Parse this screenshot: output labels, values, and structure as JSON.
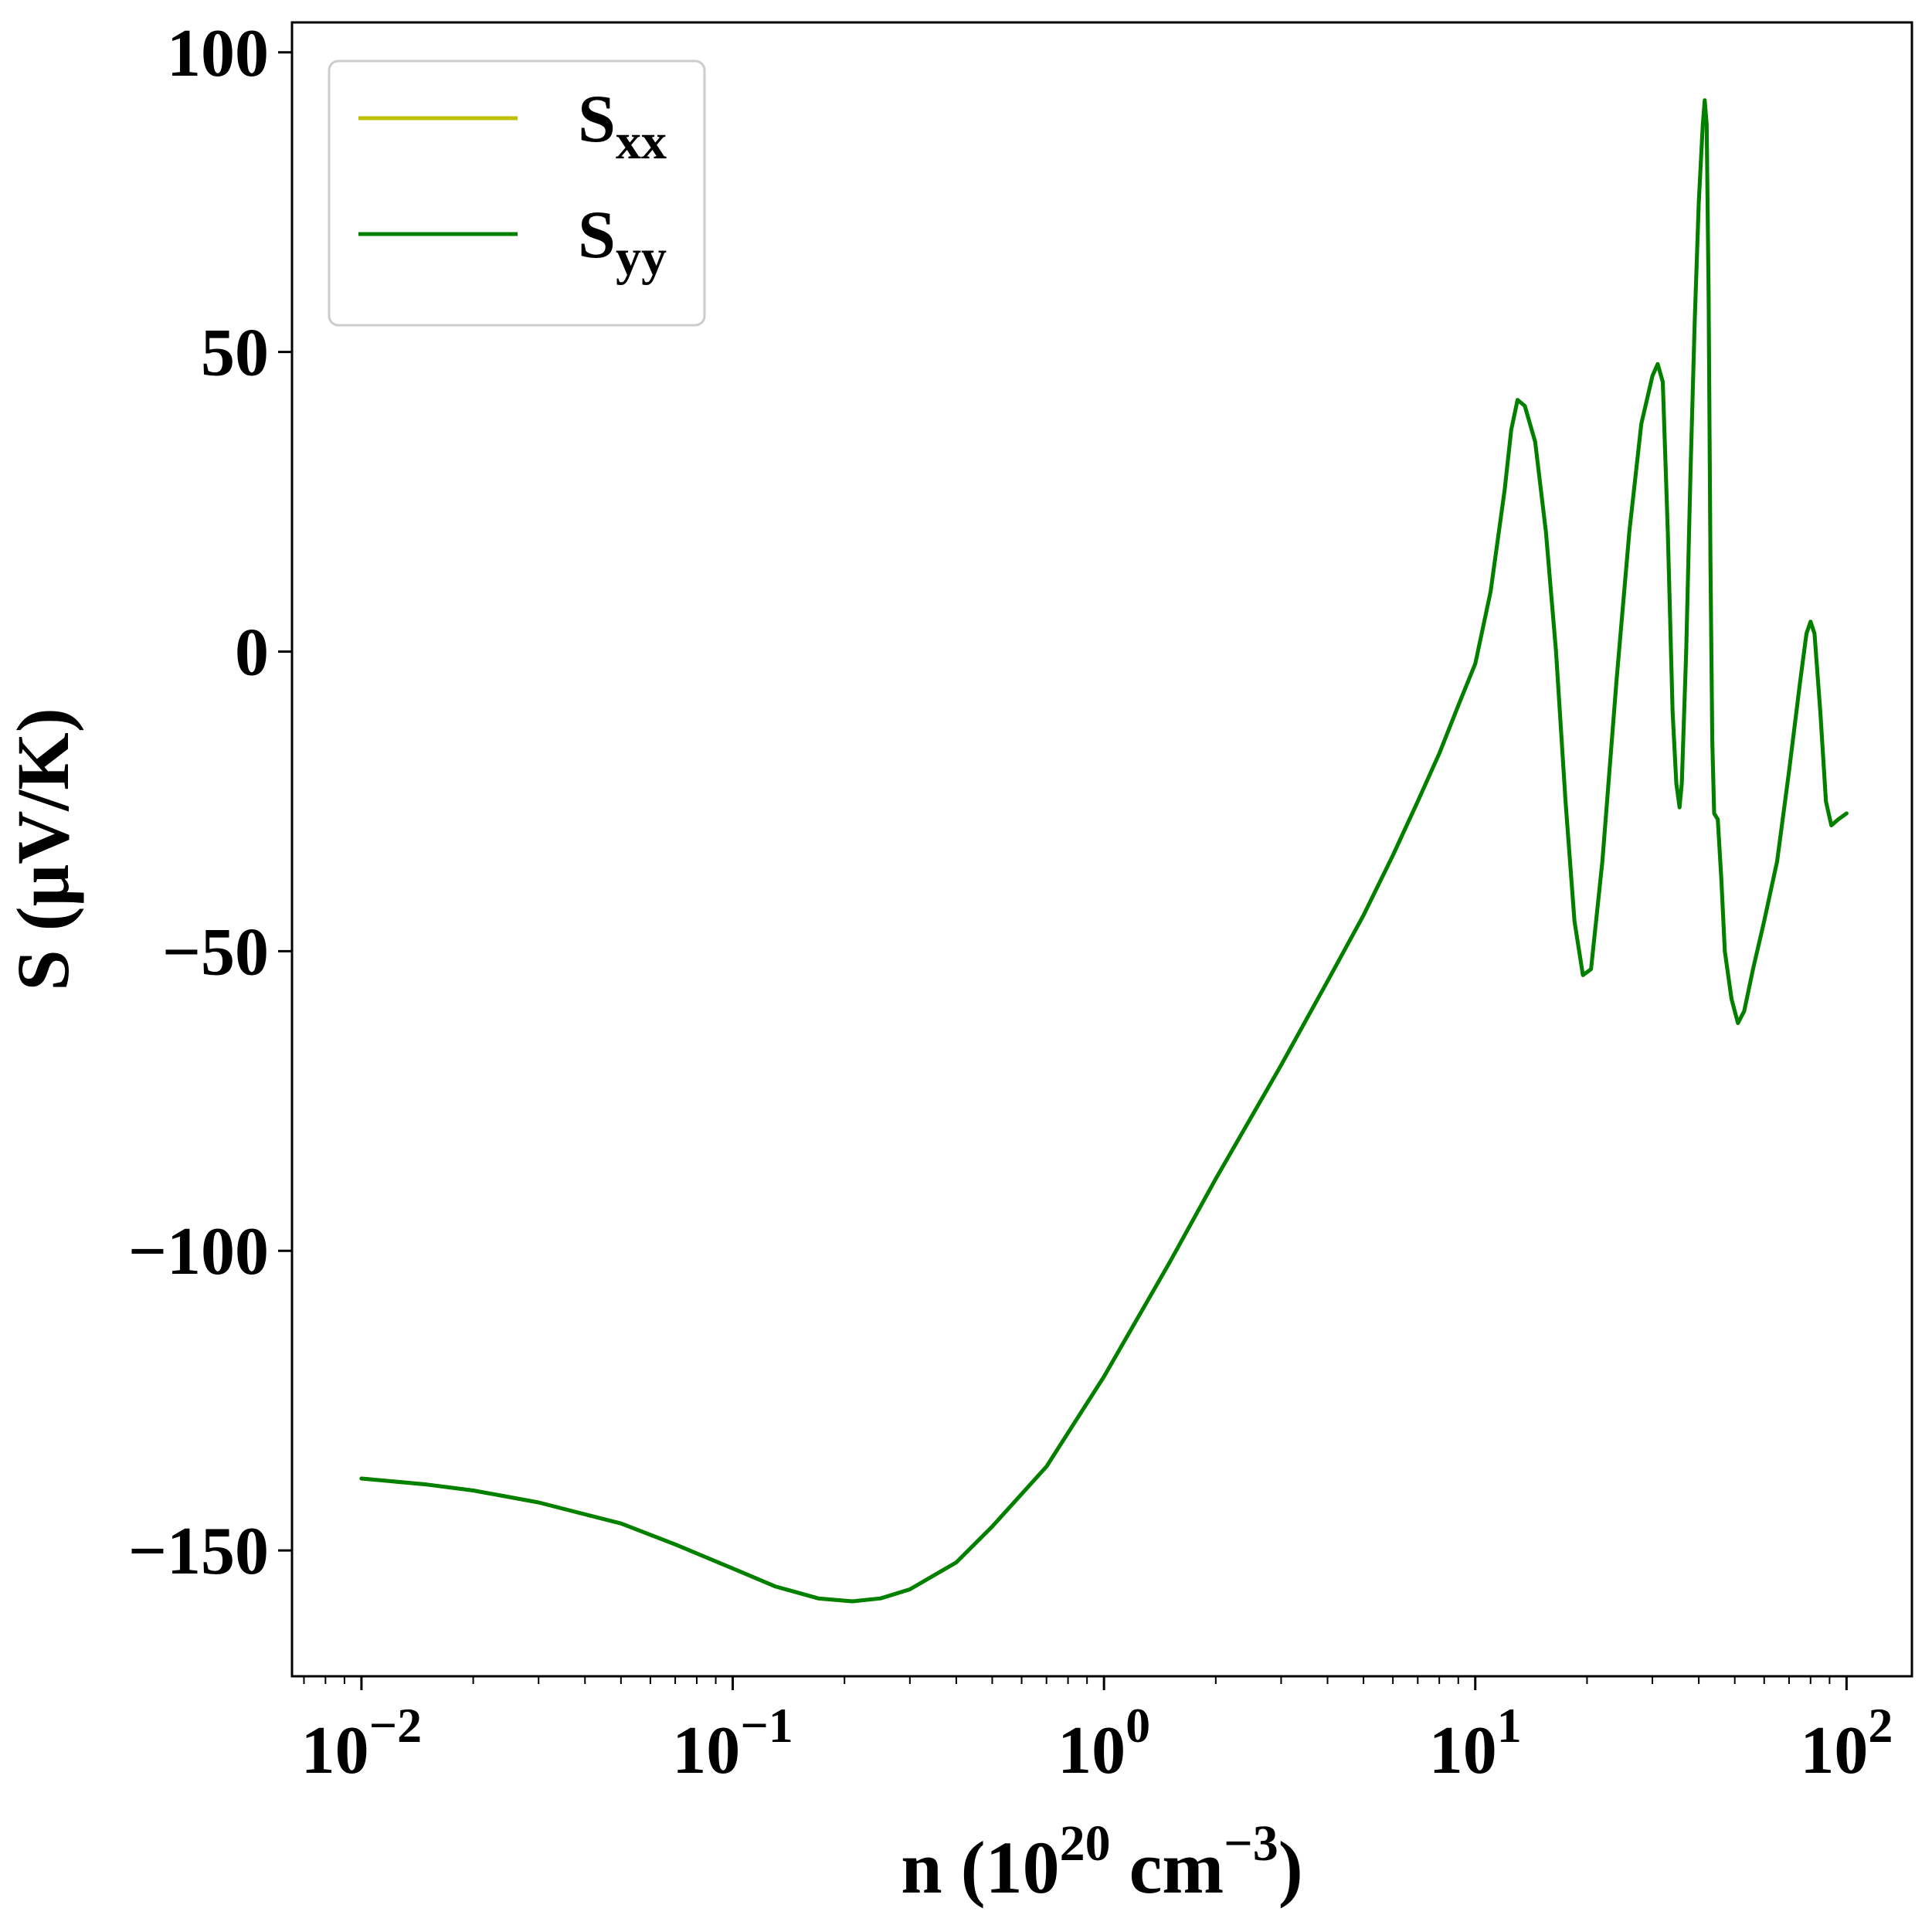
{
  "chart_data": {
    "type": "line",
    "title": "",
    "xscale": "log",
    "xlim": [
      0.0065,
      150
    ],
    "ylim": [
      -171,
      105
    ],
    "grid": false,
    "legend_position": "top-left",
    "xlabel": {
      "main": "n (10",
      "sup1": "20",
      "mid": " cm",
      "sup2": "−3",
      "end": ")"
    },
    "ylabel": "S (μV/K)",
    "x_ticks": [
      {
        "value": 0.01,
        "base": "10",
        "exp": "−2"
      },
      {
        "value": 0.1,
        "base": "10",
        "exp": "−1"
      },
      {
        "value": 1,
        "base": "10",
        "exp": "0"
      },
      {
        "value": 10,
        "base": "10",
        "exp": "1"
      },
      {
        "value": 100,
        "base": "10",
        "exp": "2"
      }
    ],
    "y_ticks": [
      {
        "value": 100,
        "label": "100"
      },
      {
        "value": 50,
        "label": "50"
      },
      {
        "value": 0,
        "label": "0"
      },
      {
        "value": -50,
        "label": "−50"
      },
      {
        "value": -100,
        "label": "−100"
      },
      {
        "value": -150,
        "label": "−150"
      }
    ],
    "series": [
      {
        "name": "S_xx",
        "legend": {
          "base": "S",
          "sub": "xx"
        },
        "color": "#bfbf00",
        "points": [
          [
            0.01,
            -138
          ],
          [
            0.015,
            -139
          ],
          [
            0.02,
            -140
          ],
          [
            0.03,
            -142
          ],
          [
            0.05,
            -145.5
          ],
          [
            0.07,
            -149
          ],
          [
            0.1,
            -153
          ],
          [
            0.13,
            -156
          ],
          [
            0.17,
            -158
          ],
          [
            0.21,
            -158.5
          ],
          [
            0.25,
            -158
          ],
          [
            0.3,
            -156.5
          ],
          [
            0.4,
            -152
          ],
          [
            0.5,
            -146
          ],
          [
            0.7,
            -136
          ],
          [
            1,
            -121
          ],
          [
            1.5,
            -102
          ],
          [
            2,
            -88
          ],
          [
            3,
            -69
          ],
          [
            4,
            -55
          ],
          [
            5,
            -44
          ],
          [
            6,
            -34
          ],
          [
            7,
            -25
          ],
          [
            8,
            -17
          ],
          [
            9,
            -9
          ],
          [
            10,
            -2
          ],
          [
            11,
            10
          ],
          [
            12,
            27
          ],
          [
            12.5,
            37
          ],
          [
            13,
            42
          ],
          [
            13.6,
            41
          ],
          [
            14.5,
            35
          ],
          [
            15.5,
            20
          ],
          [
            16.5,
            0
          ],
          [
            17.5,
            -25
          ],
          [
            18.5,
            -45
          ],
          [
            19.5,
            -54
          ],
          [
            20.5,
            -53
          ],
          [
            22,
            -35
          ],
          [
            24,
            -5
          ],
          [
            26,
            20
          ],
          [
            28,
            38
          ],
          [
            30,
            46
          ],
          [
            31,
            48
          ],
          [
            32,
            45
          ],
          [
            33,
            20
          ],
          [
            34,
            -10
          ],
          [
            34.8,
            -22
          ],
          [
            35.5,
            -26
          ],
          [
            36,
            -22
          ],
          [
            37,
            0
          ],
          [
            38,
            30
          ],
          [
            39,
            55
          ],
          [
            40,
            75
          ],
          [
            41,
            88
          ],
          [
            41.5,
            92
          ],
          [
            42,
            88
          ],
          [
            42.5,
            60
          ],
          [
            43,
            15
          ],
          [
            43.5,
            -15
          ],
          [
            44,
            -27
          ],
          [
            45,
            -28
          ],
          [
            46,
            -38
          ],
          [
            47,
            -50
          ],
          [
            49,
            -58
          ],
          [
            51,
            -62
          ],
          [
            53,
            -60
          ],
          [
            56,
            -53
          ],
          [
            60,
            -45
          ],
          [
            65,
            -35
          ],
          [
            70,
            -20
          ],
          [
            75,
            -5
          ],
          [
            78,
            3
          ],
          [
            80,
            5
          ],
          [
            82,
            3
          ],
          [
            85,
            -10
          ],
          [
            88,
            -25
          ],
          [
            91,
            -29
          ],
          [
            95,
            -28
          ],
          [
            100,
            -27
          ]
        ]
      },
      {
        "name": "S_yy",
        "legend": {
          "base": "S",
          "sub": "yy"
        },
        "color": "#008000",
        "points": [
          [
            0.01,
            -138
          ],
          [
            0.015,
            -139
          ],
          [
            0.02,
            -140
          ],
          [
            0.03,
            -142
          ],
          [
            0.05,
            -145.5
          ],
          [
            0.07,
            -149
          ],
          [
            0.1,
            -153
          ],
          [
            0.13,
            -156
          ],
          [
            0.17,
            -158
          ],
          [
            0.21,
            -158.5
          ],
          [
            0.25,
            -158
          ],
          [
            0.3,
            -156.5
          ],
          [
            0.4,
            -152
          ],
          [
            0.5,
            -146
          ],
          [
            0.7,
            -136
          ],
          [
            1,
            -121
          ],
          [
            1.5,
            -102
          ],
          [
            2,
            -88
          ],
          [
            3,
            -69
          ],
          [
            4,
            -55
          ],
          [
            5,
            -44
          ],
          [
            6,
            -34
          ],
          [
            7,
            -25
          ],
          [
            8,
            -17
          ],
          [
            9,
            -9
          ],
          [
            10,
            -2
          ],
          [
            11,
            10
          ],
          [
            12,
            27
          ],
          [
            12.5,
            37
          ],
          [
            13,
            42
          ],
          [
            13.6,
            41
          ],
          [
            14.5,
            35
          ],
          [
            15.5,
            20
          ],
          [
            16.5,
            0
          ],
          [
            17.5,
            -25
          ],
          [
            18.5,
            -45
          ],
          [
            19.5,
            -54
          ],
          [
            20.5,
            -53
          ],
          [
            22,
            -35
          ],
          [
            24,
            -5
          ],
          [
            26,
            20
          ],
          [
            28,
            38
          ],
          [
            30,
            46
          ],
          [
            31,
            48
          ],
          [
            32,
            45
          ],
          [
            33,
            20
          ],
          [
            34,
            -10
          ],
          [
            34.8,
            -22
          ],
          [
            35.5,
            -26
          ],
          [
            36,
            -22
          ],
          [
            37,
            0
          ],
          [
            38,
            30
          ],
          [
            39,
            55
          ],
          [
            40,
            75
          ],
          [
            41,
            88
          ],
          [
            41.5,
            92
          ],
          [
            42,
            88
          ],
          [
            42.5,
            60
          ],
          [
            43,
            15
          ],
          [
            43.5,
            -15
          ],
          [
            44,
            -27
          ],
          [
            45,
            -28
          ],
          [
            46,
            -38
          ],
          [
            47,
            -50
          ],
          [
            49,
            -58
          ],
          [
            51,
            -62
          ],
          [
            53,
            -60
          ],
          [
            56,
            -53
          ],
          [
            60,
            -45
          ],
          [
            65,
            -35
          ],
          [
            70,
            -20
          ],
          [
            75,
            -5
          ],
          [
            78,
            3
          ],
          [
            80,
            5
          ],
          [
            82,
            3
          ],
          [
            85,
            -10
          ],
          [
            88,
            -25
          ],
          [
            91,
            -29
          ],
          [
            95,
            -28
          ],
          [
            100,
            -27
          ]
        ]
      }
    ]
  }
}
